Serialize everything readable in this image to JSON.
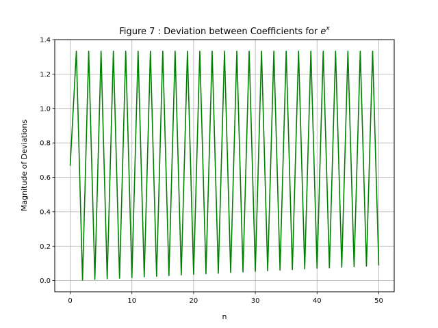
{
  "chart_data": {
    "type": "line",
    "title": "Figure 7 : Deviation between Coefficients for ",
    "title_math": "e",
    "title_sup": "x",
    "xlabel": "n",
    "ylabel": "Magnitude of Deviations",
    "xlim": [
      -2.5,
      52.5
    ],
    "ylim": [
      -0.065,
      1.4
    ],
    "xticks": [
      0,
      10,
      20,
      30,
      40,
      50
    ],
    "yticks": [
      0.0,
      0.2,
      0.4,
      0.6,
      0.8,
      1.0,
      1.2,
      1.4
    ],
    "ytick_labels": [
      "0.0",
      "0.2",
      "0.4",
      "0.6",
      "0.8",
      "1.0",
      "1.2",
      "1.4"
    ],
    "grid": true,
    "series": [
      {
        "color": "#008000",
        "x": [
          0,
          1,
          2,
          3,
          4,
          5,
          6,
          7,
          8,
          9,
          10,
          11,
          12,
          13,
          14,
          15,
          16,
          17,
          18,
          19,
          20,
          21,
          22,
          23,
          24,
          25,
          26,
          27,
          28,
          29,
          30,
          31,
          32,
          33,
          34,
          35,
          36,
          37,
          38,
          39,
          40,
          41,
          42,
          43,
          44,
          45,
          46,
          47,
          48,
          49,
          50
        ],
        "y": [
          0.667,
          1.333,
          0.003,
          1.333,
          0.007,
          1.333,
          0.011,
          1.333,
          0.014,
          1.333,
          0.018,
          1.333,
          0.022,
          1.333,
          0.025,
          1.333,
          0.029,
          1.333,
          0.033,
          1.333,
          0.036,
          1.333,
          0.04,
          1.333,
          0.043,
          1.333,
          0.047,
          1.333,
          0.05,
          1.333,
          0.054,
          1.333,
          0.057,
          1.333,
          0.061,
          1.333,
          0.064,
          1.333,
          0.068,
          1.333,
          0.071,
          1.333,
          0.074,
          1.333,
          0.078,
          1.333,
          0.081,
          1.333,
          0.084,
          1.333,
          0.088
        ]
      }
    ]
  }
}
